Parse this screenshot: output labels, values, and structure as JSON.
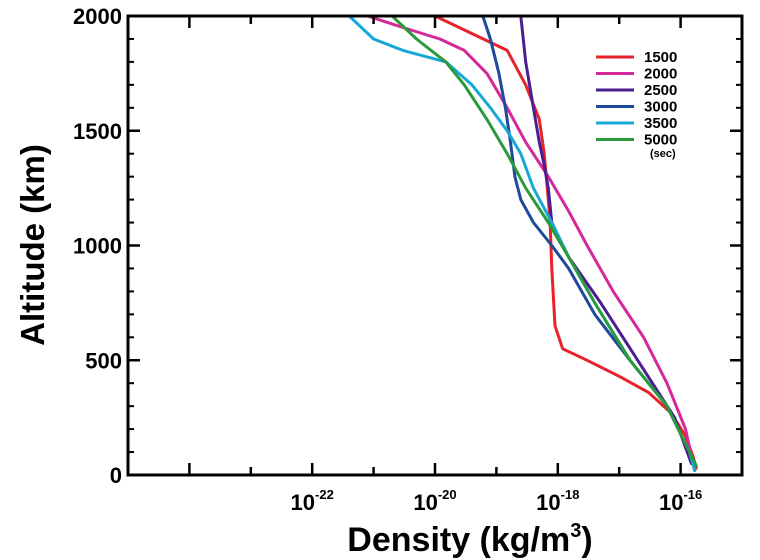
{
  "chart_data": {
    "type": "line",
    "xlabel": "Density (kg/m",
    "xlabel_sup": "3",
    "xlabel_end": ")",
    "ylabel": "Altitude (km)",
    "x_scale": "log",
    "xlim": [
      1e-25,
      1e-15
    ],
    "ylim": [
      0,
      2000
    ],
    "x_ticks": [
      {
        "base": "10",
        "exp": "-22"
      },
      {
        "base": "10",
        "exp": "-20"
      },
      {
        "base": "10",
        "exp": "-18"
      },
      {
        "base": "10",
        "exp": "-16"
      }
    ],
    "y_ticks": [
      "0",
      "500",
      "1000",
      "1500",
      "2000"
    ],
    "grid": false,
    "legend_position": "top-right",
    "legend_unit": "(sec)",
    "series": [
      {
        "name": "1500",
        "color": "#e8222a",
        "x": [
          1e-20,
          1.5e-19,
          3e-19,
          5e-19,
          6e-19,
          6.5e-19,
          7e-19,
          7.5e-19,
          8e-19,
          9e-19,
          1.2e-18,
          3e-18,
          1e-17,
          3e-17,
          7e-17,
          1.2e-16,
          1.6e-16,
          1.8e-16
        ],
        "y": [
          2000,
          1850,
          1700,
          1550,
          1400,
          1300,
          1200,
          1100,
          900,
          650,
          550,
          500,
          430,
          360,
          270,
          170,
          80,
          30
        ]
      },
      {
        "name": "2000",
        "color": "#d6289a",
        "x": [
          8e-22,
          3e-21,
          1.2e-20,
          3e-20,
          7e-20,
          1.5e-19,
          3e-19,
          7e-19,
          1.5e-18,
          3e-18,
          8e-18,
          2.5e-17,
          6e-17,
          1.2e-16,
          1.7e-16
        ],
        "y": [
          2000,
          1950,
          1900,
          1850,
          1750,
          1600,
          1450,
          1300,
          1150,
          1000,
          800,
          600,
          400,
          200,
          20
        ]
      },
      {
        "name": "2500",
        "color": "#4a1e90",
        "x": [
          2.5e-19,
          3e-19,
          4e-19,
          5e-19,
          6e-19,
          7e-19,
          8e-19,
          1.5e-18,
          5e-18,
          2e-17,
          8e-17,
          1.5e-16
        ],
        "y": [
          2000,
          1800,
          1600,
          1450,
          1350,
          1250,
          1100,
          950,
          750,
          500,
          250,
          50
        ]
      },
      {
        "name": "3000",
        "color": "#1e4a9c",
        "x": [
          6e-20,
          8e-20,
          1.1e-19,
          1.4e-19,
          1.7e-19,
          2e-19,
          2.5e-19,
          4e-19,
          8e-19,
          1.5e-18,
          4e-18,
          1.5e-17,
          6e-17,
          1.4e-16,
          1.7e-16
        ],
        "y": [
          2000,
          1900,
          1750,
          1600,
          1450,
          1300,
          1200,
          1100,
          1000,
          900,
          700,
          500,
          300,
          100,
          20
        ]
      },
      {
        "name": "3500",
        "color": "#18a8d8",
        "x": [
          4e-22,
          1e-21,
          3e-21,
          1.5e-20,
          4e-20,
          8e-20,
          1.5e-19,
          2.5e-19,
          4e-19,
          8e-19,
          1.5e-18,
          4e-18,
          1.5e-17,
          6e-17,
          1.4e-16,
          1.7e-16
        ],
        "y": [
          2000,
          1900,
          1850,
          1800,
          1700,
          1600,
          1500,
          1400,
          1250,
          1100,
          950,
          750,
          500,
          300,
          100,
          20
        ]
      },
      {
        "name": "5000",
        "color": "#2a9a3a",
        "x": [
          2e-21,
          5e-21,
          1.5e-20,
          3e-20,
          7e-20,
          1.5e-19,
          3e-19,
          7e-19,
          1.5e-18,
          4e-18,
          1.5e-17,
          6e-17,
          1.4e-16,
          1.8e-16
        ],
        "y": [
          2000,
          1900,
          1800,
          1700,
          1550,
          1400,
          1250,
          1100,
          950,
          750,
          500,
          300,
          100,
          40
        ]
      }
    ]
  }
}
